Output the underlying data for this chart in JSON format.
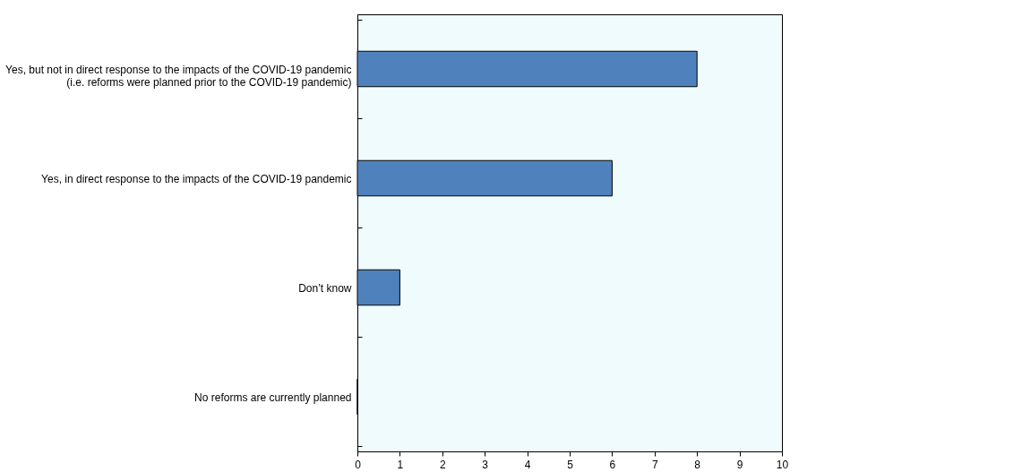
{
  "chart_data": {
    "type": "bar",
    "orientation": "horizontal",
    "categories": [
      "Yes, but not in direct response to the impacts of the COVID-19 pandemic\n(i.e. reforms were planned prior to the COVID-19 pandemic)",
      "Yes, in direct response to the impacts of the COVID-19 pandemic",
      "Don’t know",
      "No reforms are currently planned"
    ],
    "values": [
      8,
      6,
      1,
      0
    ],
    "color": "#4f81bd",
    "xlim": [
      0,
      10
    ],
    "xticks": [
      0,
      1,
      2,
      3,
      4,
      5,
      6,
      7,
      8,
      9,
      10
    ],
    "grid": false
  }
}
